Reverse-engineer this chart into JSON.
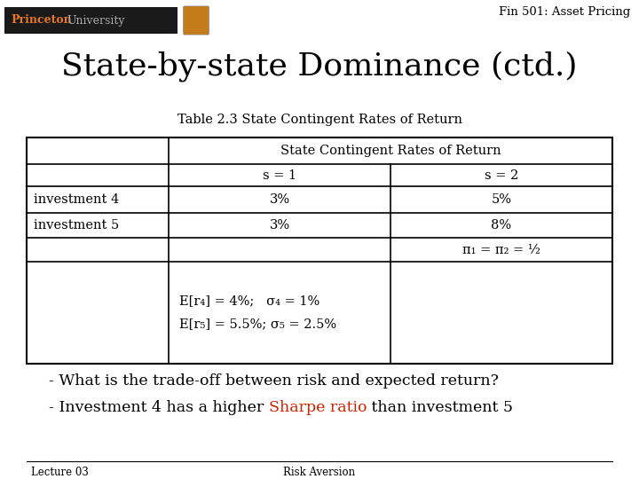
{
  "bg_color": "#ffffff",
  "header_text": "Fin 501: Asset Pricing",
  "title": "State-by-state Dominance (ctd.)",
  "table_caption": "Table 2.3 State Contingent Rates of Return",
  "table_span_header": "State Contingent Rates of Return",
  "col_s1": "s = 1",
  "col_s2": "s = 2",
  "inv4": "investment 4",
  "inv5": "investment 5",
  "r4_s1": "3%",
  "r4_s2": "5%",
  "r5_s1": "3%",
  "r5_s2": "8%",
  "pi_eq": "π₁ = π₂ = ½",
  "stat4": "E[r₄] = 4%;   σ₄ = 1%",
  "stat5": "E[r₅] = 5.5%; σ₅ = 2.5%",
  "bullet1": "- What is the trade-off between risk and expected return?",
  "bullet2_part1": "- Investment 4 has a higher ",
  "bullet2_highlight": "Sharpe ratio",
  "bullet2_part2": " than investment 5",
  "footer_left": "Lecture 03",
  "footer_center": "Risk Aversion",
  "princeton_text": "Princeton",
  "princeton_text2": "University",
  "highlight_color": "#cc2200",
  "text_color": "#000000",
  "princeton_color": "#e87722",
  "logo_bar_color": "#1a1a1a"
}
